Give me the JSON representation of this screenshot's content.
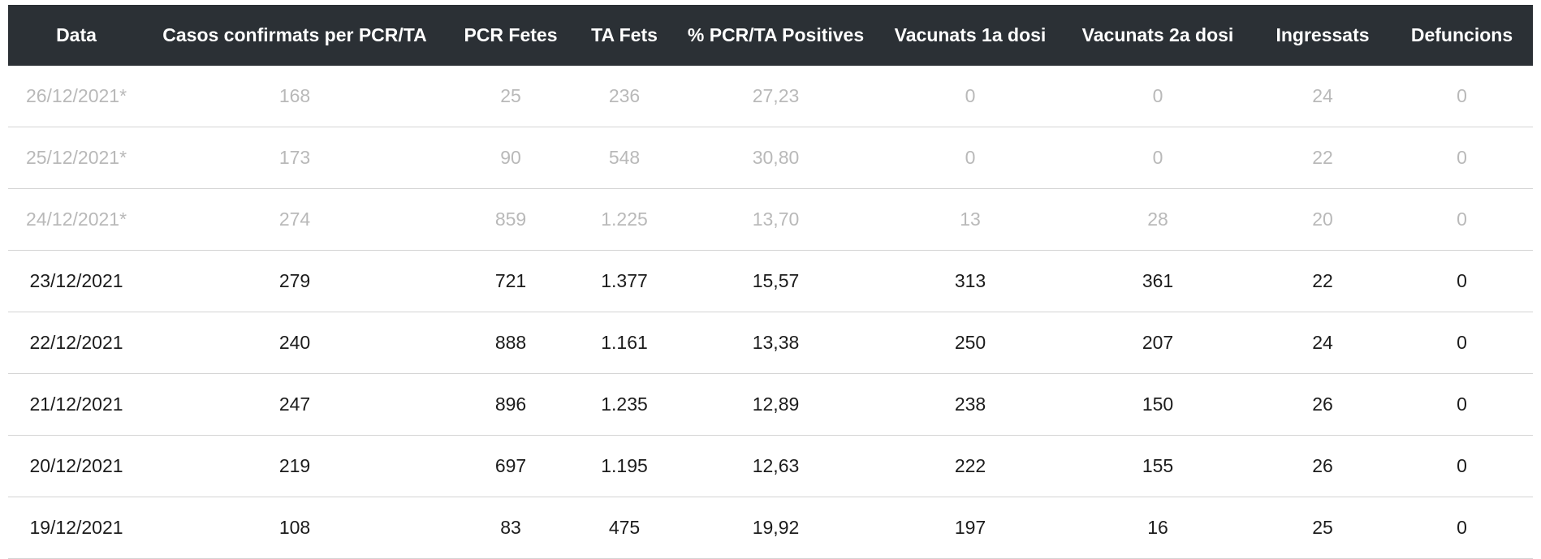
{
  "table": {
    "headers": [
      "Data",
      "Casos confirmats per PCR/TA",
      "PCR Fetes",
      "TA Fets",
      "% PCR/TA Positives",
      "Vacunats 1a dosi",
      "Vacunats 2a dosi",
      "Ingressats",
      "Defuncions"
    ],
    "rows": [
      {
        "provisional": true,
        "cells": [
          "26/12/2021*",
          "168",
          "25",
          "236",
          "27,23",
          "0",
          "0",
          "24",
          "0"
        ]
      },
      {
        "provisional": true,
        "cells": [
          "25/12/2021*",
          "173",
          "90",
          "548",
          "30,80",
          "0",
          "0",
          "22",
          "0"
        ]
      },
      {
        "provisional": true,
        "cells": [
          "24/12/2021*",
          "274",
          "859",
          "1.225",
          "13,70",
          "13",
          "28",
          "20",
          "0"
        ]
      },
      {
        "provisional": false,
        "cells": [
          "23/12/2021",
          "279",
          "721",
          "1.377",
          "15,57",
          "313",
          "361",
          "22",
          "0"
        ]
      },
      {
        "provisional": false,
        "cells": [
          "22/12/2021",
          "240",
          "888",
          "1.161",
          "13,38",
          "250",
          "207",
          "24",
          "0"
        ]
      },
      {
        "provisional": false,
        "cells": [
          "21/12/2021",
          "247",
          "896",
          "1.235",
          "12,89",
          "238",
          "150",
          "26",
          "0"
        ]
      },
      {
        "provisional": false,
        "cells": [
          "20/12/2021",
          "219",
          "697",
          "1.195",
          "12,63",
          "222",
          "155",
          "26",
          "0"
        ]
      },
      {
        "provisional": false,
        "cells": [
          "19/12/2021",
          "108",
          "83",
          "475",
          "19,92",
          "197",
          "16",
          "25",
          "0"
        ]
      }
    ]
  },
  "colors": {
    "header_bg": "#2b3035",
    "header_text": "#ffffff",
    "provisional_text": "#b9b9b9",
    "confirmed_text": "#1c1c1c",
    "row_divider": "#d4d4d4"
  }
}
